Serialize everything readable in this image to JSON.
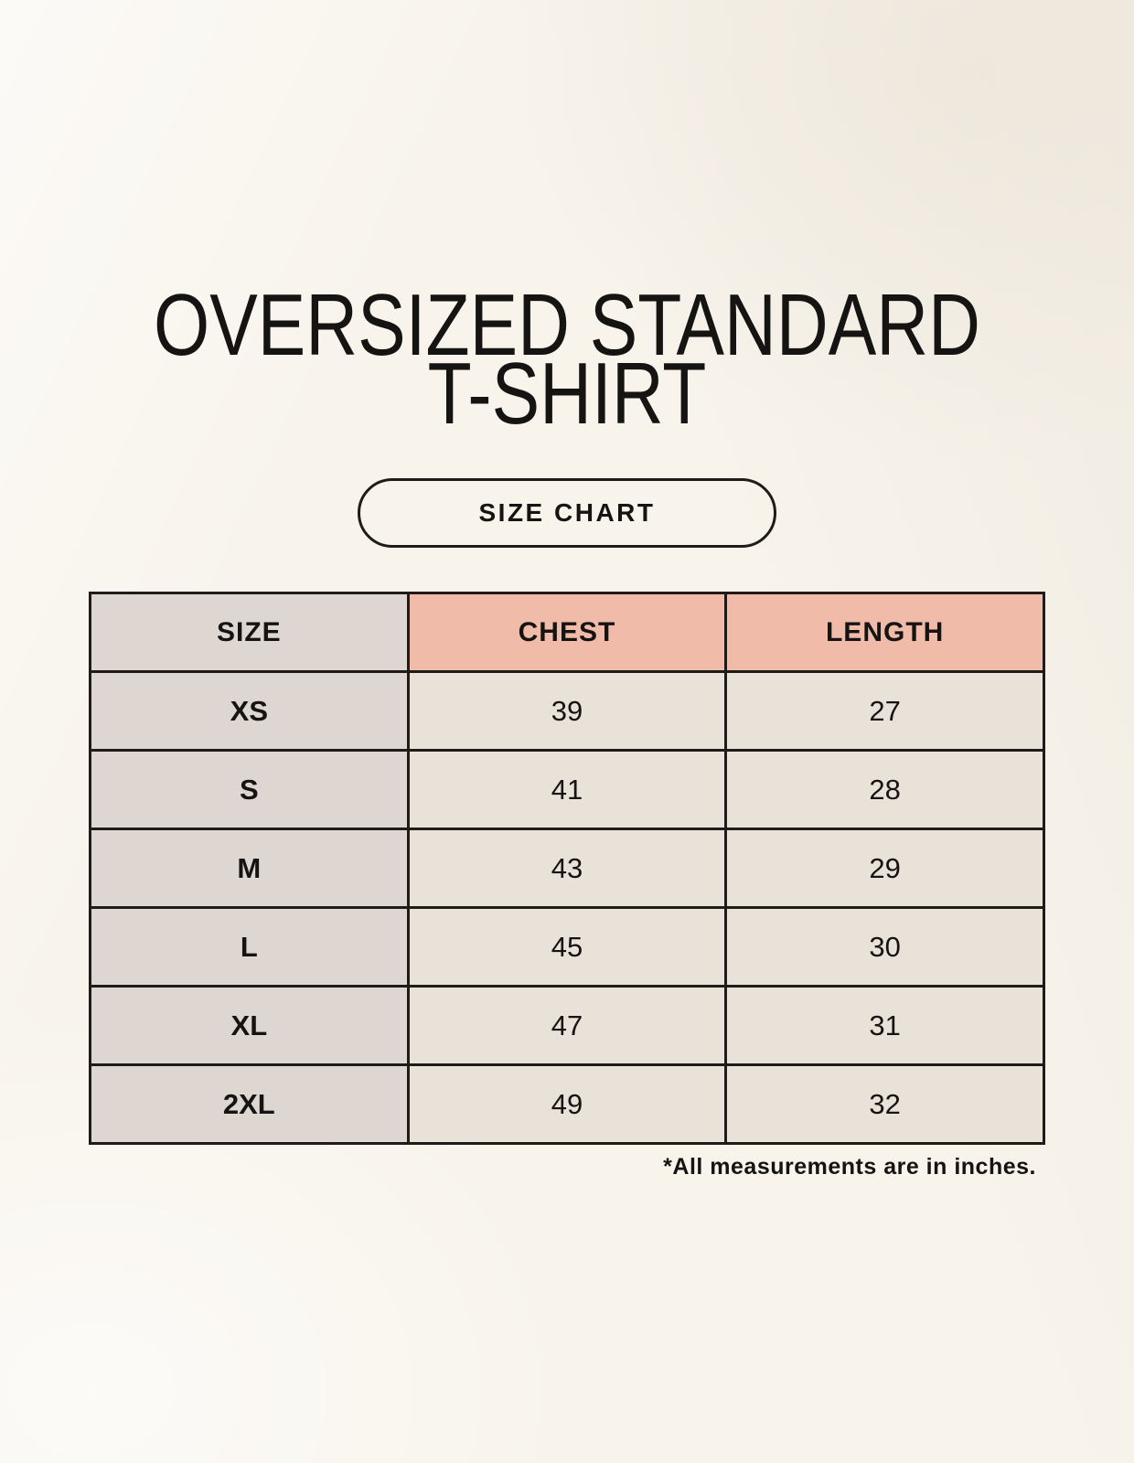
{
  "header": {
    "title_line1": "OVERSIZED STANDARD",
    "title_line2": "T-SHIRT",
    "badge_label": "SIZE CHART"
  },
  "table": {
    "columns": [
      "SIZE",
      "CHEST",
      "LENGTH"
    ],
    "rows": [
      [
        "XS",
        "39",
        "27"
      ],
      [
        "S",
        "41",
        "28"
      ],
      [
        "M",
        "43",
        "29"
      ],
      [
        "L",
        "45",
        "30"
      ],
      [
        "XL",
        "47",
        "31"
      ],
      [
        "2XL",
        "49",
        "32"
      ]
    ],
    "footnote": "*All measurements are in inches."
  },
  "colors": {
    "page_bg": "#f8f4ec",
    "cell_bg": "#e9e2d8",
    "size_col_bg": "#ded7d1",
    "measure_header_bg": "#f1bbaa",
    "border": "#1e1b18",
    "text": "#161412"
  },
  "chart_data": {
    "type": "table",
    "title": "OVERSIZED STANDARD T-SHIRT SIZE CHART",
    "columns": [
      "SIZE",
      "CHEST",
      "LENGTH"
    ],
    "rows": [
      [
        "XS",
        39,
        27
      ],
      [
        "S",
        41,
        28
      ],
      [
        "M",
        43,
        29
      ],
      [
        "L",
        45,
        30
      ],
      [
        "XL",
        47,
        31
      ],
      [
        "2XL",
        49,
        32
      ]
    ],
    "units": "inches"
  }
}
